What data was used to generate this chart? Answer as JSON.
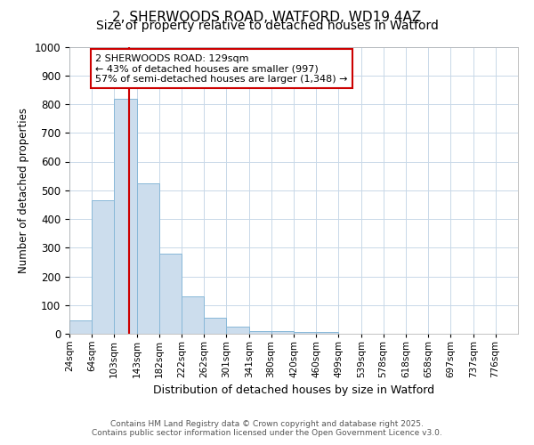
{
  "title_line1": "2, SHERWOODS ROAD, WATFORD, WD19 4AZ",
  "title_line2": "Size of property relative to detached houses in Watford",
  "xlabel": "Distribution of detached houses by size in Watford",
  "ylabel": "Number of detached properties",
  "bar_edges": [
    24,
    64,
    103,
    143,
    182,
    222,
    262,
    301,
    341,
    380,
    420,
    460,
    499,
    539,
    578,
    618,
    658,
    697,
    737,
    776,
    816
  ],
  "bar_heights": [
    45,
    465,
    820,
    525,
    280,
    130,
    55,
    25,
    10,
    10,
    5,
    5,
    0,
    0,
    0,
    0,
    0,
    0,
    0,
    0
  ],
  "bar_color": "#ccdded",
  "bar_edgecolor": "#88b8d8",
  "vline_x": 129,
  "vline_color": "#cc0000",
  "annotation_line1": "2 SHERWOODS ROAD: 129sqm",
  "annotation_line2": "← 43% of detached houses are smaller (997)",
  "annotation_line3": "57% of semi-detached houses are larger (1,348) →",
  "annotation_box_color": "#cc0000",
  "annotation_box_facecolor": "#ffffff",
  "ylim": [
    0,
    1000
  ],
  "yticks": [
    0,
    100,
    200,
    300,
    400,
    500,
    600,
    700,
    800,
    900,
    1000
  ],
  "footnote_line1": "Contains HM Land Registry data © Crown copyright and database right 2025.",
  "footnote_line2": "Contains public sector information licensed under the Open Government Licence v3.0.",
  "bg_color": "#ffffff",
  "plot_bg_color": "#ffffff",
  "grid_color": "#c8d8e8",
  "title_fontsize": 11,
  "subtitle_fontsize": 10
}
